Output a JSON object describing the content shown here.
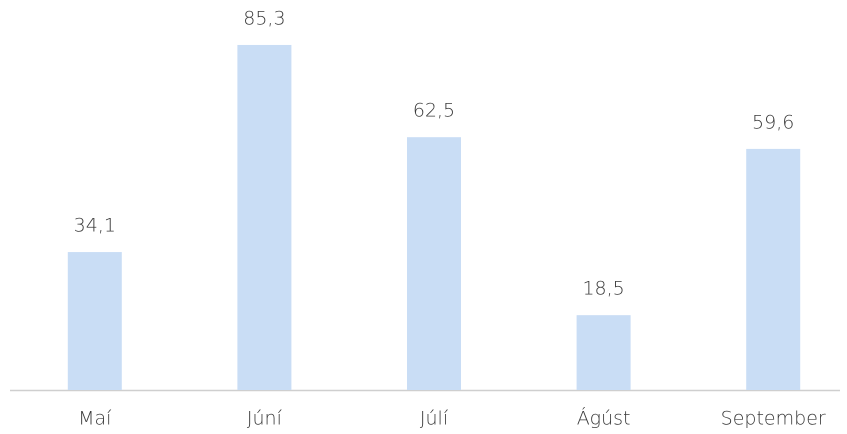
{
  "chart_data": {
    "type": "bar",
    "categories": [
      "Maí",
      "Júní",
      "Júlí",
      "Ágúst",
      "September"
    ],
    "values": [
      34.1,
      85.3,
      62.5,
      18.5,
      59.6
    ],
    "value_labels": [
      "34,1",
      "85,3",
      "62,5",
      "18,5",
      "59,6"
    ],
    "color": "#c9ddf5"
  }
}
